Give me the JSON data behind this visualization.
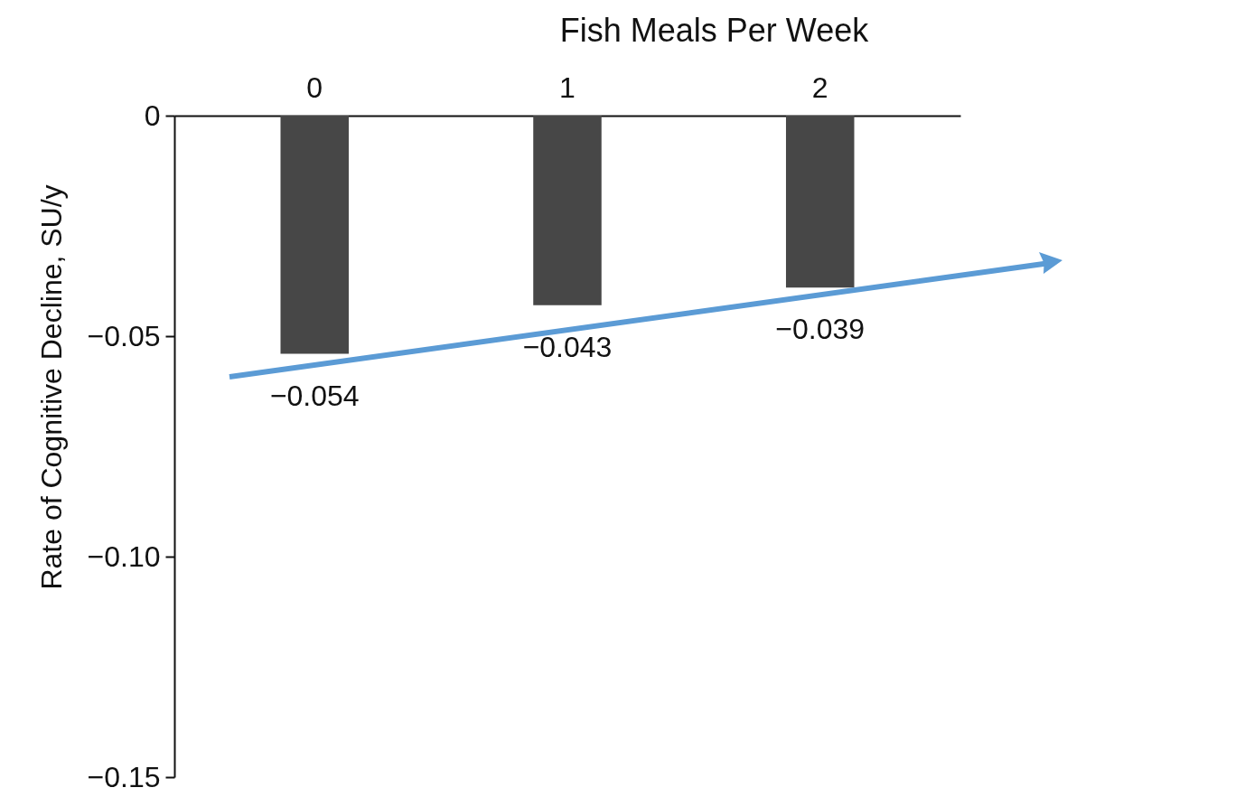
{
  "chart_data": {
    "type": "bar",
    "xlabel": "Fish Meals Per Week",
    "ylabel": "Rate of Cognitive Decline, SU/y",
    "categories": [
      "0",
      "1",
      "2"
    ],
    "values": [
      -0.054,
      -0.043,
      -0.039
    ],
    "value_labels": [
      "−0.054",
      "−0.043",
      "−0.039"
    ],
    "color": "#474747",
    "ylim": [
      -0.15,
      0
    ],
    "yticks": [
      0,
      {
        "value": -0.05,
        "label": "−0.05"
      },
      {
        "value": -0.1,
        "label": "−0.10"
      },
      {
        "value": -0.15,
        "label": "−0.15"
      }
    ],
    "grid": false
  }
}
